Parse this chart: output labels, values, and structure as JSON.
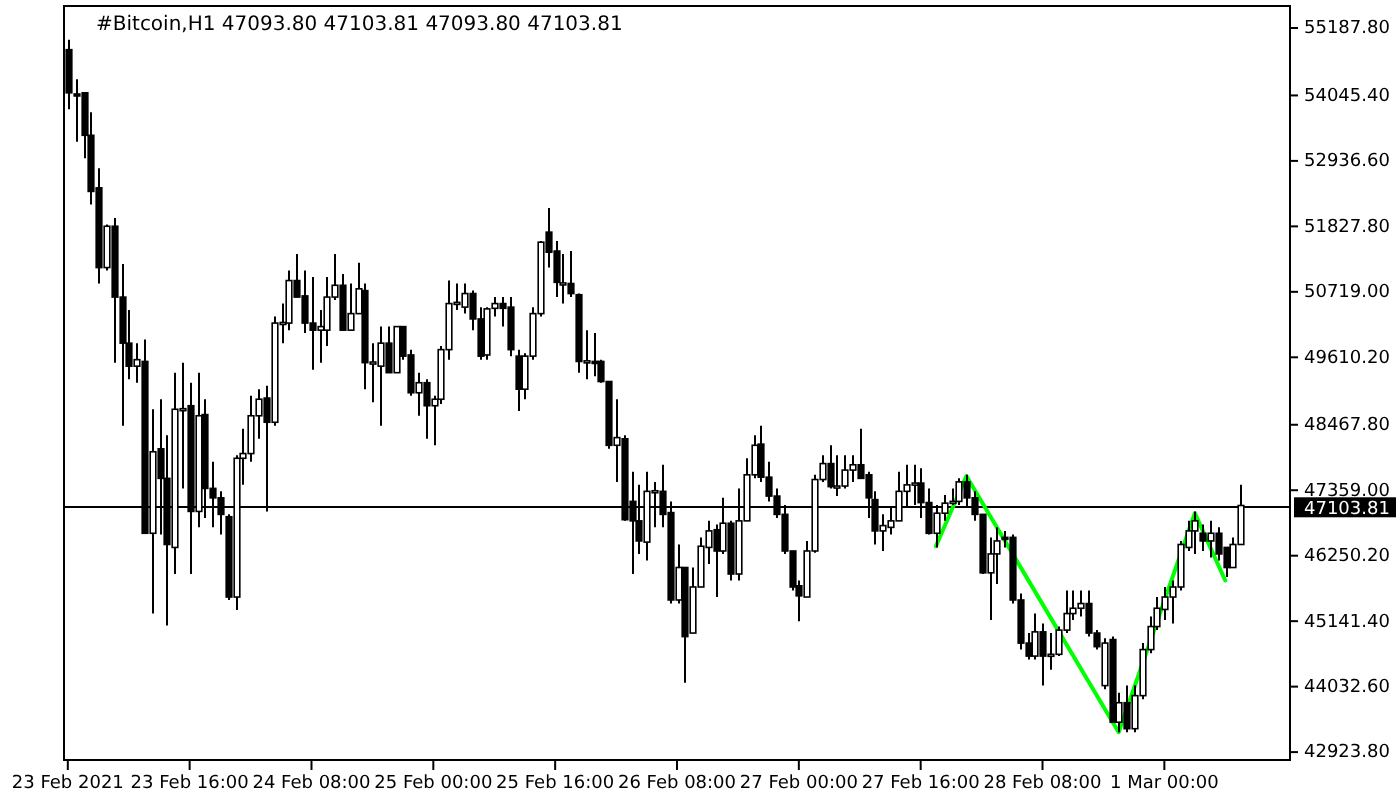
{
  "chart_data": {
    "type": "candlestick",
    "title": "#Bitcoin,H1 47093.80 47103.81 47093.80 47103.81",
    "x": [
      "2021-02-23T00:00",
      "2021-02-23T01:00",
      "2021-02-23T02:00",
      "2021-02-23T03:00",
      "2021-02-23T04:00",
      "2021-02-23T05:00",
      "2021-02-23T06:00",
      "2021-02-23T07:00",
      "2021-02-23T08:00",
      "2021-02-23T09:00",
      "2021-02-23T10:00",
      "2021-02-23T11:00",
      "2021-02-23T12:00",
      "2021-02-23T13:00",
      "2021-02-23T14:00",
      "2021-02-23T15:00",
      "2021-02-23T16:00",
      "2021-02-23T17:00",
      "2021-02-23T18:00",
      "2021-02-23T19:00",
      "2021-02-23T20:00",
      "2021-02-23T21:00",
      "2021-02-23T22:00",
      "2021-02-23T23:00",
      "2021-02-24T00:00",
      "2021-02-24T01:00",
      "2021-02-24T02:00",
      "2021-02-24T03:00",
      "2021-02-24T04:00",
      "2021-02-24T05:00",
      "2021-02-24T06:00",
      "2021-02-24T07:00",
      "2021-02-24T08:00",
      "2021-02-24T09:00",
      "2021-02-24T10:00",
      "2021-02-24T11:00",
      "2021-02-24T12:00",
      "2021-02-24T13:00",
      "2021-02-24T14:00",
      "2021-02-24T15:00",
      "2021-02-24T16:00",
      "2021-02-24T17:00",
      "2021-02-24T18:00",
      "2021-02-24T19:00",
      "2021-02-24T20:00",
      "2021-02-24T21:00",
      "2021-02-24T22:00",
      "2021-02-24T23:00",
      "2021-02-25T00:00",
      "2021-02-25T01:00",
      "2021-02-25T02:00",
      "2021-02-25T03:00",
      "2021-02-25T04:00",
      "2021-02-25T05:00",
      "2021-02-25T06:00",
      "2021-02-25T07:00",
      "2021-02-25T08:00",
      "2021-02-25T09:00",
      "2021-02-25T10:00",
      "2021-02-25T11:00",
      "2021-02-25T12:00",
      "2021-02-25T13:00",
      "2021-02-25T14:00",
      "2021-02-25T15:00",
      "2021-02-25T16:00",
      "2021-02-25T17:00",
      "2021-02-25T18:00",
      "2021-02-25T19:00",
      "2021-02-25T20:00",
      "2021-02-25T21:00",
      "2021-02-25T22:00",
      "2021-02-25T23:00",
      "2021-02-26T00:00",
      "2021-02-26T01:00",
      "2021-02-26T02:00",
      "2021-02-26T03:00",
      "2021-02-26T04:00",
      "2021-02-26T05:00",
      "2021-02-26T06:00",
      "2021-02-26T07:00",
      "2021-02-26T08:00",
      "2021-02-26T09:00",
      "2021-02-26T10:00",
      "2021-02-26T11:00",
      "2021-02-26T12:00",
      "2021-02-26T13:00",
      "2021-02-26T14:00",
      "2021-02-26T15:00",
      "2021-02-26T16:00",
      "2021-02-26T17:00",
      "2021-02-26T18:00",
      "2021-02-26T19:00",
      "2021-02-26T20:00",
      "2021-02-26T21:00",
      "2021-02-26T22:00",
      "2021-02-26T23:00",
      "2021-02-27T00:00",
      "2021-02-27T01:00",
      "2021-02-27T02:00",
      "2021-02-27T03:00",
      "2021-02-27T04:00",
      "2021-02-27T05:00",
      "2021-02-27T06:00",
      "2021-02-27T07:00",
      "2021-02-27T08:00",
      "2021-02-27T09:00",
      "2021-02-27T10:00",
      "2021-02-27T11:00",
      "2021-02-27T12:00",
      "2021-02-27T13:00",
      "2021-02-27T14:00",
      "2021-02-27T15:00",
      "2021-02-27T16:00",
      "2021-02-27T17:00",
      "2021-02-27T18:00",
      "2021-02-27T19:00",
      "2021-02-27T20:00",
      "2021-02-27T21:00",
      "2021-02-27T22:00",
      "2021-02-27T23:00",
      "2021-02-28T00:00",
      "2021-02-28T01:00",
      "2021-02-28T02:00",
      "2021-02-28T03:00",
      "2021-02-28T04:00",
      "2021-02-28T05:00",
      "2021-02-28T06:00",
      "2021-02-28T07:00",
      "2021-02-28T08:00",
      "2021-02-28T09:00",
      "2021-02-28T10:00",
      "2021-02-28T11:00",
      "2021-02-28T12:00",
      "2021-02-28T13:00",
      "2021-02-28T14:00",
      "2021-02-28T15:00",
      "2021-02-28T16:00",
      "2021-02-28T17:00",
      "2021-02-28T18:00",
      "2021-02-28T19:00",
      "2021-02-28T20:00",
      "2021-02-28T21:00",
      "2021-02-28T22:00",
      "2021-02-28T23:00",
      "2021-03-01T00:00",
      "2021-03-01T01:00",
      "2021-03-01T02:00",
      "2021-03-01T03:00",
      "2021-03-01T04:00",
      "2021-03-01T05:00",
      "2021-03-01T06:00",
      "2021-03-01T07:00",
      "2021-03-01T08:00",
      "2021-03-01T09:00",
      "2021-03-01T10:00"
    ],
    "ohlc": [
      [
        54820,
        54990,
        53810,
        54090
      ],
      [
        54070,
        54320,
        53260,
        54060
      ],
      [
        54090,
        54090,
        52980,
        53370
      ],
      [
        53370,
        53760,
        52200,
        52420
      ],
      [
        52480,
        52810,
        50860,
        51130
      ],
      [
        51130,
        51860,
        51080,
        51830
      ],
      [
        51830,
        51970,
        49520,
        50630
      ],
      [
        50630,
        51190,
        48450,
        49850
      ],
      [
        49850,
        50410,
        49240,
        49460
      ],
      [
        49460,
        49850,
        49180,
        49570
      ],
      [
        49540,
        49910,
        46630,
        46630
      ],
      [
        46630,
        48730,
        45270,
        48010
      ],
      [
        48060,
        48900,
        46610,
        47560
      ],
      [
        47560,
        48290,
        45070,
        46440
      ],
      [
        46390,
        49350,
        45940,
        48730
      ],
      [
        48720,
        49520,
        47390,
        48740
      ],
      [
        48790,
        49180,
        45940,
        47000
      ],
      [
        47000,
        49350,
        46730,
        48620
      ],
      [
        48640,
        48900,
        46890,
        47390
      ],
      [
        47390,
        47840,
        46730,
        47230
      ],
      [
        47230,
        47340,
        46610,
        46950
      ],
      [
        46910,
        46950,
        45500,
        45550
      ],
      [
        45550,
        47950,
        45330,
        47900
      ],
      [
        47900,
        48400,
        47450,
        47980
      ],
      [
        47980,
        48960,
        47840,
        48620
      ],
      [
        48620,
        49070,
        48230,
        48900
      ],
      [
        48920,
        49130,
        47000,
        48510
      ],
      [
        48510,
        50300,
        48450,
        50190
      ],
      [
        50190,
        50520,
        49850,
        50200
      ],
      [
        50190,
        51080,
        50070,
        50910
      ],
      [
        50910,
        51360,
        50630,
        50630
      ],
      [
        50650,
        51080,
        50020,
        50190
      ],
      [
        50190,
        50970,
        49400,
        50070
      ],
      [
        50070,
        50410,
        49520,
        50130
      ],
      [
        50070,
        50970,
        49800,
        50630
      ],
      [
        50630,
        51360,
        50580,
        50830
      ],
      [
        50830,
        51020,
        50070,
        50070
      ],
      [
        50070,
        50860,
        50070,
        50350
      ],
      [
        50350,
        51210,
        50350,
        50770
      ],
      [
        50740,
        50860,
        49070,
        49520
      ],
      [
        49520,
        49850,
        48850,
        49530
      ],
      [
        49460,
        50130,
        48450,
        49850
      ],
      [
        49850,
        50130,
        49350,
        49350
      ],
      [
        49350,
        50130,
        49350,
        50130
      ],
      [
        50130,
        50130,
        49570,
        49630
      ],
      [
        49650,
        49740,
        48960,
        49010
      ],
      [
        49010,
        49350,
        48620,
        49180
      ],
      [
        49180,
        49240,
        48230,
        48790
      ],
      [
        48790,
        48960,
        48120,
        48900
      ],
      [
        48900,
        49800,
        48820,
        49740
      ],
      [
        49740,
        50910,
        49570,
        50520
      ],
      [
        50520,
        50860,
        50410,
        50540
      ],
      [
        50460,
        50860,
        50350,
        50690
      ],
      [
        50690,
        50740,
        50070,
        50260
      ],
      [
        50260,
        50460,
        49570,
        49630
      ],
      [
        49650,
        50460,
        49570,
        50430
      ],
      [
        50440,
        50630,
        50300,
        50520
      ],
      [
        50520,
        50630,
        50130,
        50440
      ],
      [
        50460,
        50630,
        49630,
        49740
      ],
      [
        49630,
        49740,
        48700,
        49070
      ],
      [
        49070,
        49680,
        48900,
        49630
      ],
      [
        49630,
        50460,
        49570,
        50350
      ],
      [
        50350,
        51580,
        50300,
        51560
      ],
      [
        51730,
        52140,
        51130,
        51390
      ],
      [
        51410,
        51580,
        50630,
        50880
      ],
      [
        50860,
        51360,
        50520,
        50870
      ],
      [
        50860,
        51410,
        50630,
        50690
      ],
      [
        50670,
        50690,
        49350,
        49540
      ],
      [
        49540,
        50070,
        49240,
        49550
      ],
      [
        49540,
        50020,
        49290,
        49530
      ],
      [
        49540,
        49570,
        49180,
        49200
      ],
      [
        49200,
        49200,
        48060,
        48120
      ],
      [
        48120,
        48900,
        47500,
        48250
      ],
      [
        48230,
        48290,
        46840,
        46860
      ],
      [
        47170,
        47670,
        45940,
        46840
      ],
      [
        46840,
        47450,
        46280,
        46500
      ],
      [
        46480,
        47670,
        46170,
        47340
      ],
      [
        47340,
        47500,
        46730,
        47350
      ],
      [
        47340,
        47790,
        46730,
        46950
      ],
      [
        46980,
        47170,
        45440,
        45500
      ],
      [
        45500,
        46440,
        45440,
        46050
      ],
      [
        46050,
        46050,
        44100,
        44880
      ],
      [
        44940,
        46050,
        44940,
        45720
      ],
      [
        45720,
        46560,
        45720,
        46410
      ],
      [
        46390,
        46840,
        46110,
        46670
      ],
      [
        46690,
        46780,
        45550,
        46330
      ],
      [
        46330,
        47230,
        46280,
        46800
      ],
      [
        46800,
        46840,
        45830,
        45940
      ],
      [
        45940,
        47390,
        45830,
        46840
      ],
      [
        46840,
        47900,
        46840,
        47620
      ],
      [
        47620,
        48290,
        47560,
        48120
      ],
      [
        48140,
        48450,
        47500,
        47580
      ],
      [
        47580,
        47840,
        47170,
        47260
      ],
      [
        47260,
        47390,
        46890,
        46950
      ],
      [
        46950,
        47110,
        46280,
        46330
      ],
      [
        46330,
        46330,
        45660,
        45720
      ],
      [
        45740,
        45830,
        45140,
        45570
      ],
      [
        45550,
        46500,
        45550,
        46330
      ],
      [
        46330,
        47620,
        46300,
        47540
      ],
      [
        47540,
        47950,
        47500,
        47810
      ],
      [
        47810,
        48120,
        47390,
        47420
      ],
      [
        47420,
        47950,
        47260,
        47430
      ],
      [
        47430,
        47950,
        47390,
        47700
      ],
      [
        47700,
        47950,
        47500,
        47790
      ],
      [
        47790,
        48400,
        47560,
        47560
      ],
      [
        47620,
        47670,
        46890,
        47230
      ],
      [
        47200,
        47340,
        46440,
        46670
      ],
      [
        46670,
        46950,
        46330,
        46760
      ],
      [
        46730,
        47060,
        46610,
        46840
      ],
      [
        46840,
        47670,
        46840,
        47340
      ],
      [
        47340,
        47790,
        47060,
        47450
      ],
      [
        47450,
        47790,
        47110,
        47480
      ],
      [
        47480,
        47730,
        46890,
        47150
      ],
      [
        47150,
        47390,
        46610,
        46630
      ],
      [
        46630,
        47110,
        46390,
        46970
      ],
      [
        46970,
        47280,
        46840,
        47140
      ],
      [
        47140,
        47390,
        47110,
        47170
      ],
      [
        47170,
        47560,
        47110,
        47500
      ],
      [
        47500,
        47620,
        47060,
        47230
      ],
      [
        47230,
        47340,
        46840,
        46950
      ],
      [
        46950,
        46950,
        45940,
        45960
      ],
      [
        45960,
        46560,
        45160,
        46280
      ],
      [
        46280,
        46730,
        45770,
        46500
      ],
      [
        46560,
        46670,
        46390,
        46550
      ],
      [
        46560,
        46610,
        45440,
        45500
      ],
      [
        45500,
        45610,
        44660,
        44770
      ],
      [
        44770,
        44940,
        44490,
        44550
      ],
      [
        44550,
        45270,
        44490,
        44960
      ],
      [
        44960,
        45100,
        44050,
        44550
      ],
      [
        44550,
        44940,
        44320,
        44580
      ],
      [
        44580,
        45050,
        44550,
        44990
      ],
      [
        44990,
        45660,
        44940,
        45270
      ],
      [
        45270,
        45660,
        45160,
        45360
      ],
      [
        45360,
        45660,
        45220,
        45440
      ],
      [
        45440,
        45660,
        44880,
        44940
      ],
      [
        44940,
        44990,
        44660,
        44710
      ],
      [
        44050,
        44850,
        43990,
        44770
      ],
      [
        44830,
        44880,
        43430,
        43430
      ],
      [
        43430,
        43930,
        43260,
        43760
      ],
      [
        43760,
        44050,
        43260,
        43320
      ],
      [
        43320,
        44050,
        43260,
        43880
      ],
      [
        43880,
        44770,
        43820,
        44660
      ],
      [
        44660,
        45220,
        44600,
        45050
      ],
      [
        45050,
        45550,
        44990,
        45360
      ],
      [
        45340,
        45720,
        45160,
        45550
      ],
      [
        45550,
        45830,
        45100,
        45720
      ],
      [
        45720,
        46500,
        45660,
        46440
      ],
      [
        46390,
        46840,
        46330,
        46670
      ],
      [
        46670,
        47000,
        46280,
        46840
      ],
      [
        46630,
        46780,
        46330,
        46500
      ],
      [
        46500,
        46840,
        46220,
        46630
      ],
      [
        46630,
        46730,
        46170,
        46280
      ],
      [
        46390,
        46390,
        45890,
        46050
      ],
      [
        46050,
        46560,
        46050,
        46440
      ],
      [
        46440,
        47450,
        46440,
        47100
      ]
    ],
    "series": [
      {
        "type": "line",
        "color": "#00ff00",
        "x": [
          "2021-02-27T18:00",
          "2021-02-27T22:00",
          "2021-02-28T18:00",
          "2021-03-01T04:00",
          "2021-03-01T08:00"
        ],
        "values": [
          46410,
          47600,
          43260,
          46970,
          45830
        ]
      }
    ],
    "xlim": [
      "2021-02-22T23:30",
      "2021-03-01T16:30"
    ],
    "ylim": [
      42790,
      55560
    ],
    "xticks": [
      {
        "value": "2021-02-23T00:00",
        "label": "23 Feb 2021"
      },
      {
        "value": "2021-02-23T16:00",
        "label": "23 Feb 16:00"
      },
      {
        "value": "2021-02-24T08:00",
        "label": "24 Feb 08:00"
      },
      {
        "value": "2021-02-25T00:00",
        "label": "25 Feb 00:00"
      },
      {
        "value": "2021-02-25T16:00",
        "label": "25 Feb 16:00"
      },
      {
        "value": "2021-02-26T08:00",
        "label": "26 Feb 08:00"
      },
      {
        "value": "2021-02-27T00:00",
        "label": "27 Feb 00:00"
      },
      {
        "value": "2021-02-27T16:00",
        "label": "27 Feb 16:00"
      },
      {
        "value": "2021-02-28T08:00",
        "label": "28 Feb 08:00"
      },
      {
        "value": "2021-03-01T00:00",
        "label": "1 Mar 00:00"
      }
    ],
    "yticks": [
      {
        "value": 42923.8,
        "label": "42923.80"
      },
      {
        "value": 44032.6,
        "label": "44032.60"
      },
      {
        "value": 45141.4,
        "label": "45141.40"
      },
      {
        "value": 46250.2,
        "label": "46250.20"
      },
      {
        "value": 47359,
        "label": "47359.00"
      },
      {
        "value": 48467.8,
        "label": "48467.80"
      },
      {
        "value": 49610.2,
        "label": "49610.20"
      },
      {
        "value": 50719,
        "label": "50719.00"
      },
      {
        "value": 51827.8,
        "label": "51827.80"
      },
      {
        "value": 52936.6,
        "label": "52936.60"
      },
      {
        "value": 54045.4,
        "label": "54045.40"
      },
      {
        "value": 55187.8,
        "label": "55187.80"
      }
    ],
    "ref_lines": [
      {
        "axis": "y",
        "value": 47103.81,
        "label": "47103.81",
        "color": "#000000"
      }
    ]
  }
}
